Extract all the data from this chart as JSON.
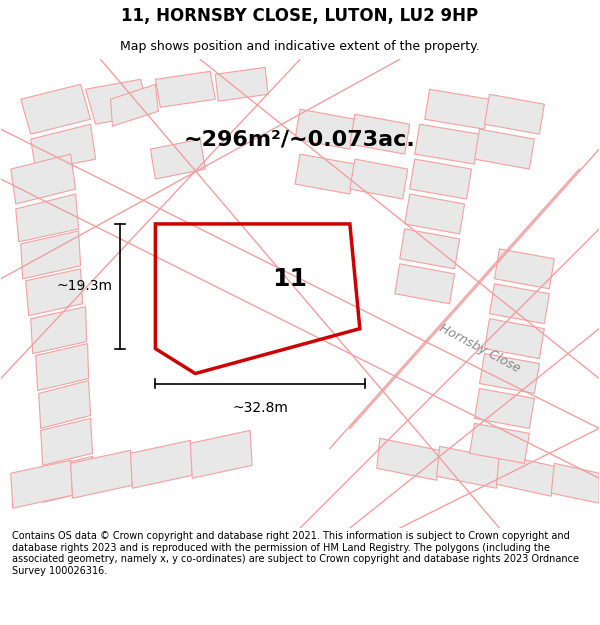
{
  "title": "11, HORNSBY CLOSE, LUTON, LU2 9HP",
  "subtitle": "Map shows position and indicative extent of the property.",
  "area_text": "~296m²/~0.073ac.",
  "label_number": "11",
  "dim_width": "~32.8m",
  "dim_height": "~19.3m",
  "footer": "Contains OS data © Crown copyright and database right 2021. This information is subject to Crown copyright and database rights 2023 and is reproduced with the permission of HM Land Registry. The polygons (including the associated geometry, namely x, y co-ordinates) are subject to Crown copyright and database rights 2023 Ordnance Survey 100026316.",
  "bg_color": "#f0f0f0",
  "map_bg": "#f5f5f5",
  "plot_outline_color": "#cc0000",
  "street_label": "Hornsby Close",
  "fig_width": 6.0,
  "fig_height": 6.25
}
